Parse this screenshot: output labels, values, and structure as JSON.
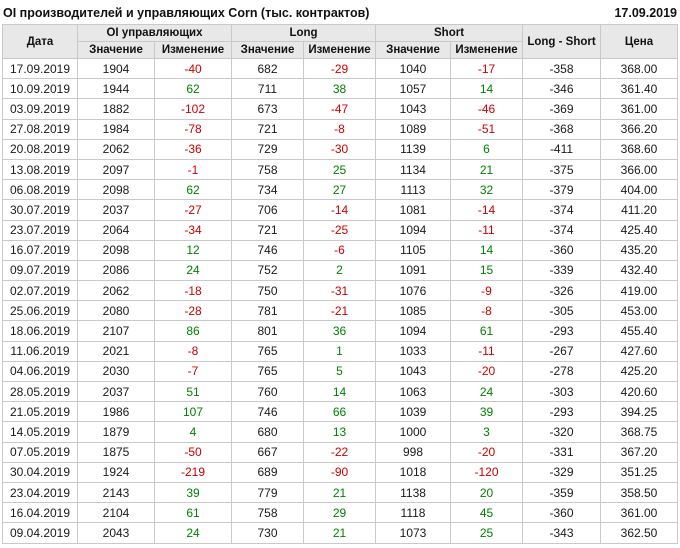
{
  "title": "OI производителей и управляющих Corn (тыс. контрактов)",
  "report_date": "17.09.2019",
  "colors": {
    "positive_change": "#008000",
    "negative_change": "#cc0000",
    "header_background": "#e8e8e8",
    "border": "#c9c9c9"
  },
  "table": {
    "headers": {
      "date": "Дата",
      "oi_group": "OI управляющих",
      "long_group": "Long",
      "short_group": "Short",
      "long_short": "Long - Short",
      "price": "Цена",
      "value": "Значение",
      "change": "Изменение"
    },
    "columns": [
      {
        "key": "date",
        "kind": "plain",
        "name": "date-cell"
      },
      {
        "key": "oi_value",
        "kind": "plain",
        "name": "oi-value-cell"
      },
      {
        "key": "oi_change",
        "kind": "change",
        "name": "oi-change-cell"
      },
      {
        "key": "long_value",
        "kind": "plain",
        "name": "long-value-cell"
      },
      {
        "key": "long_change",
        "kind": "change",
        "name": "long-change-cell"
      },
      {
        "key": "short_value",
        "kind": "plain",
        "name": "short-value-cell"
      },
      {
        "key": "short_change",
        "kind": "change",
        "name": "short-change-cell"
      },
      {
        "key": "long_short",
        "kind": "plain",
        "name": "long-short-cell"
      },
      {
        "key": "price",
        "kind": "plain",
        "name": "price-cell"
      }
    ],
    "rows": [
      {
        "date": "17.09.2019",
        "oi_value": "1904",
        "oi_change": "-40",
        "long_value": "682",
        "long_change": "-29",
        "short_value": "1040",
        "short_change": "-17",
        "long_short": "-358",
        "price": "368.00"
      },
      {
        "date": "10.09.2019",
        "oi_value": "1944",
        "oi_change": "62",
        "long_value": "711",
        "long_change": "38",
        "short_value": "1057",
        "short_change": "14",
        "long_short": "-346",
        "price": "361.40"
      },
      {
        "date": "03.09.2019",
        "oi_value": "1882",
        "oi_change": "-102",
        "long_value": "673",
        "long_change": "-47",
        "short_value": "1043",
        "short_change": "-46",
        "long_short": "-369",
        "price": "361.00"
      },
      {
        "date": "27.08.2019",
        "oi_value": "1984",
        "oi_change": "-78",
        "long_value": "721",
        "long_change": "-8",
        "short_value": "1089",
        "short_change": "-51",
        "long_short": "-368",
        "price": "366.20"
      },
      {
        "date": "20.08.2019",
        "oi_value": "2062",
        "oi_change": "-36",
        "long_value": "729",
        "long_change": "-30",
        "short_value": "1139",
        "short_change": "6",
        "long_short": "-411",
        "price": "368.60"
      },
      {
        "date": "13.08.2019",
        "oi_value": "2097",
        "oi_change": "-1",
        "long_value": "758",
        "long_change": "25",
        "short_value": "1134",
        "short_change": "21",
        "long_short": "-375",
        "price": "366.00"
      },
      {
        "date": "06.08.2019",
        "oi_value": "2098",
        "oi_change": "62",
        "long_value": "734",
        "long_change": "27",
        "short_value": "1113",
        "short_change": "32",
        "long_short": "-379",
        "price": "404.00"
      },
      {
        "date": "30.07.2019",
        "oi_value": "2037",
        "oi_change": "-27",
        "long_value": "706",
        "long_change": "-14",
        "short_value": "1081",
        "short_change": "-14",
        "long_short": "-374",
        "price": "411.20"
      },
      {
        "date": "23.07.2019",
        "oi_value": "2064",
        "oi_change": "-34",
        "long_value": "721",
        "long_change": "-25",
        "short_value": "1094",
        "short_change": "-11",
        "long_short": "-374",
        "price": "425.40"
      },
      {
        "date": "16.07.2019",
        "oi_value": "2098",
        "oi_change": "12",
        "long_value": "746",
        "long_change": "-6",
        "short_value": "1105",
        "short_change": "14",
        "long_short": "-360",
        "price": "435.20"
      },
      {
        "date": "09.07.2019",
        "oi_value": "2086",
        "oi_change": "24",
        "long_value": "752",
        "long_change": "2",
        "short_value": "1091",
        "short_change": "15",
        "long_short": "-339",
        "price": "432.40"
      },
      {
        "date": "02.07.2019",
        "oi_value": "2062",
        "oi_change": "-18",
        "long_value": "750",
        "long_change": "-31",
        "short_value": "1076",
        "short_change": "-9",
        "long_short": "-326",
        "price": "419.00"
      },
      {
        "date": "25.06.2019",
        "oi_value": "2080",
        "oi_change": "-28",
        "long_value": "781",
        "long_change": "-21",
        "short_value": "1085",
        "short_change": "-8",
        "long_short": "-305",
        "price": "453.00"
      },
      {
        "date": "18.06.2019",
        "oi_value": "2107",
        "oi_change": "86",
        "long_value": "801",
        "long_change": "36",
        "short_value": "1094",
        "short_change": "61",
        "long_short": "-293",
        "price": "455.40"
      },
      {
        "date": "11.06.2019",
        "oi_value": "2021",
        "oi_change": "-8",
        "long_value": "765",
        "long_change": "1",
        "short_value": "1033",
        "short_change": "-11",
        "long_short": "-267",
        "price": "427.60"
      },
      {
        "date": "04.06.2019",
        "oi_value": "2030",
        "oi_change": "-7",
        "long_value": "765",
        "long_change": "5",
        "short_value": "1043",
        "short_change": "-20",
        "long_short": "-278",
        "price": "425.20"
      },
      {
        "date": "28.05.2019",
        "oi_value": "2037",
        "oi_change": "51",
        "long_value": "760",
        "long_change": "14",
        "short_value": "1063",
        "short_change": "24",
        "long_short": "-303",
        "price": "420.60"
      },
      {
        "date": "21.05.2019",
        "oi_value": "1986",
        "oi_change": "107",
        "long_value": "746",
        "long_change": "66",
        "short_value": "1039",
        "short_change": "39",
        "long_short": "-293",
        "price": "394.25"
      },
      {
        "date": "14.05.2019",
        "oi_value": "1879",
        "oi_change": "4",
        "long_value": "680",
        "long_change": "13",
        "short_value": "1000",
        "short_change": "3",
        "long_short": "-320",
        "price": "368.75"
      },
      {
        "date": "07.05.2019",
        "oi_value": "1875",
        "oi_change": "-50",
        "long_value": "667",
        "long_change": "-22",
        "short_value": "998",
        "short_change": "-20",
        "long_short": "-331",
        "price": "367.20"
      },
      {
        "date": "30.04.2019",
        "oi_value": "1924",
        "oi_change": "-219",
        "long_value": "689",
        "long_change": "-90",
        "short_value": "1018",
        "short_change": "-120",
        "long_short": "-329",
        "price": "351.25"
      },
      {
        "date": "23.04.2019",
        "oi_value": "2143",
        "oi_change": "39",
        "long_value": "779",
        "long_change": "21",
        "short_value": "1138",
        "short_change": "20",
        "long_short": "-359",
        "price": "358.50"
      },
      {
        "date": "16.04.2019",
        "oi_value": "2104",
        "oi_change": "61",
        "long_value": "758",
        "long_change": "29",
        "short_value": "1118",
        "short_change": "45",
        "long_short": "-360",
        "price": "361.00"
      },
      {
        "date": "09.04.2019",
        "oi_value": "2043",
        "oi_change": "24",
        "long_value": "730",
        "long_change": "21",
        "short_value": "1073",
        "short_change": "25",
        "long_short": "-343",
        "price": "362.50"
      }
    ]
  }
}
